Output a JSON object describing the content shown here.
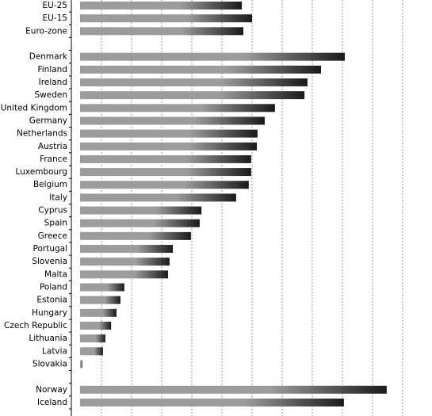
{
  "chart_data": {
    "type": "hbar",
    "categories": [
      "EU-25",
      "EU-15",
      "Euro-zone",
      null,
      "Denmark",
      "Finland",
      "Ireland",
      "Sweden",
      "United Kingdom",
      "Germany",
      "Netherlands",
      "Austria",
      "France",
      "Luxembourg",
      "Belgium",
      "Italy",
      "Cyprus",
      "Spain",
      "Greece",
      "Portugal",
      "Slovenia",
      "Malta",
      "Poland",
      "Estonia",
      "Hungary",
      "Czech Republic",
      "Lithuania",
      "Latvia",
      "Slovakia",
      null,
      "Norway",
      "Iceland"
    ],
    "values": [
      5.66,
      6.0,
      5.71,
      null,
      9.08,
      8.29,
      7.84,
      7.74,
      6.76,
      6.42,
      6.18,
      6.16,
      5.97,
      5.97,
      5.89,
      5.47,
      4.32,
      4.26,
      3.97,
      3.37,
      3.26,
      3.21,
      1.76,
      1.63,
      1.5,
      1.32,
      1.13,
      1.05,
      0.37,
      null,
      10.47,
      9.05
    ],
    "color": "#9c9c9c",
    "end_color": "#1a1a1a",
    "xlim": [
      0,
      12
    ],
    "xticks": [
      1,
      2,
      3,
      4,
      5,
      6,
      7,
      8,
      9,
      10,
      11
    ],
    "grid": true
  }
}
